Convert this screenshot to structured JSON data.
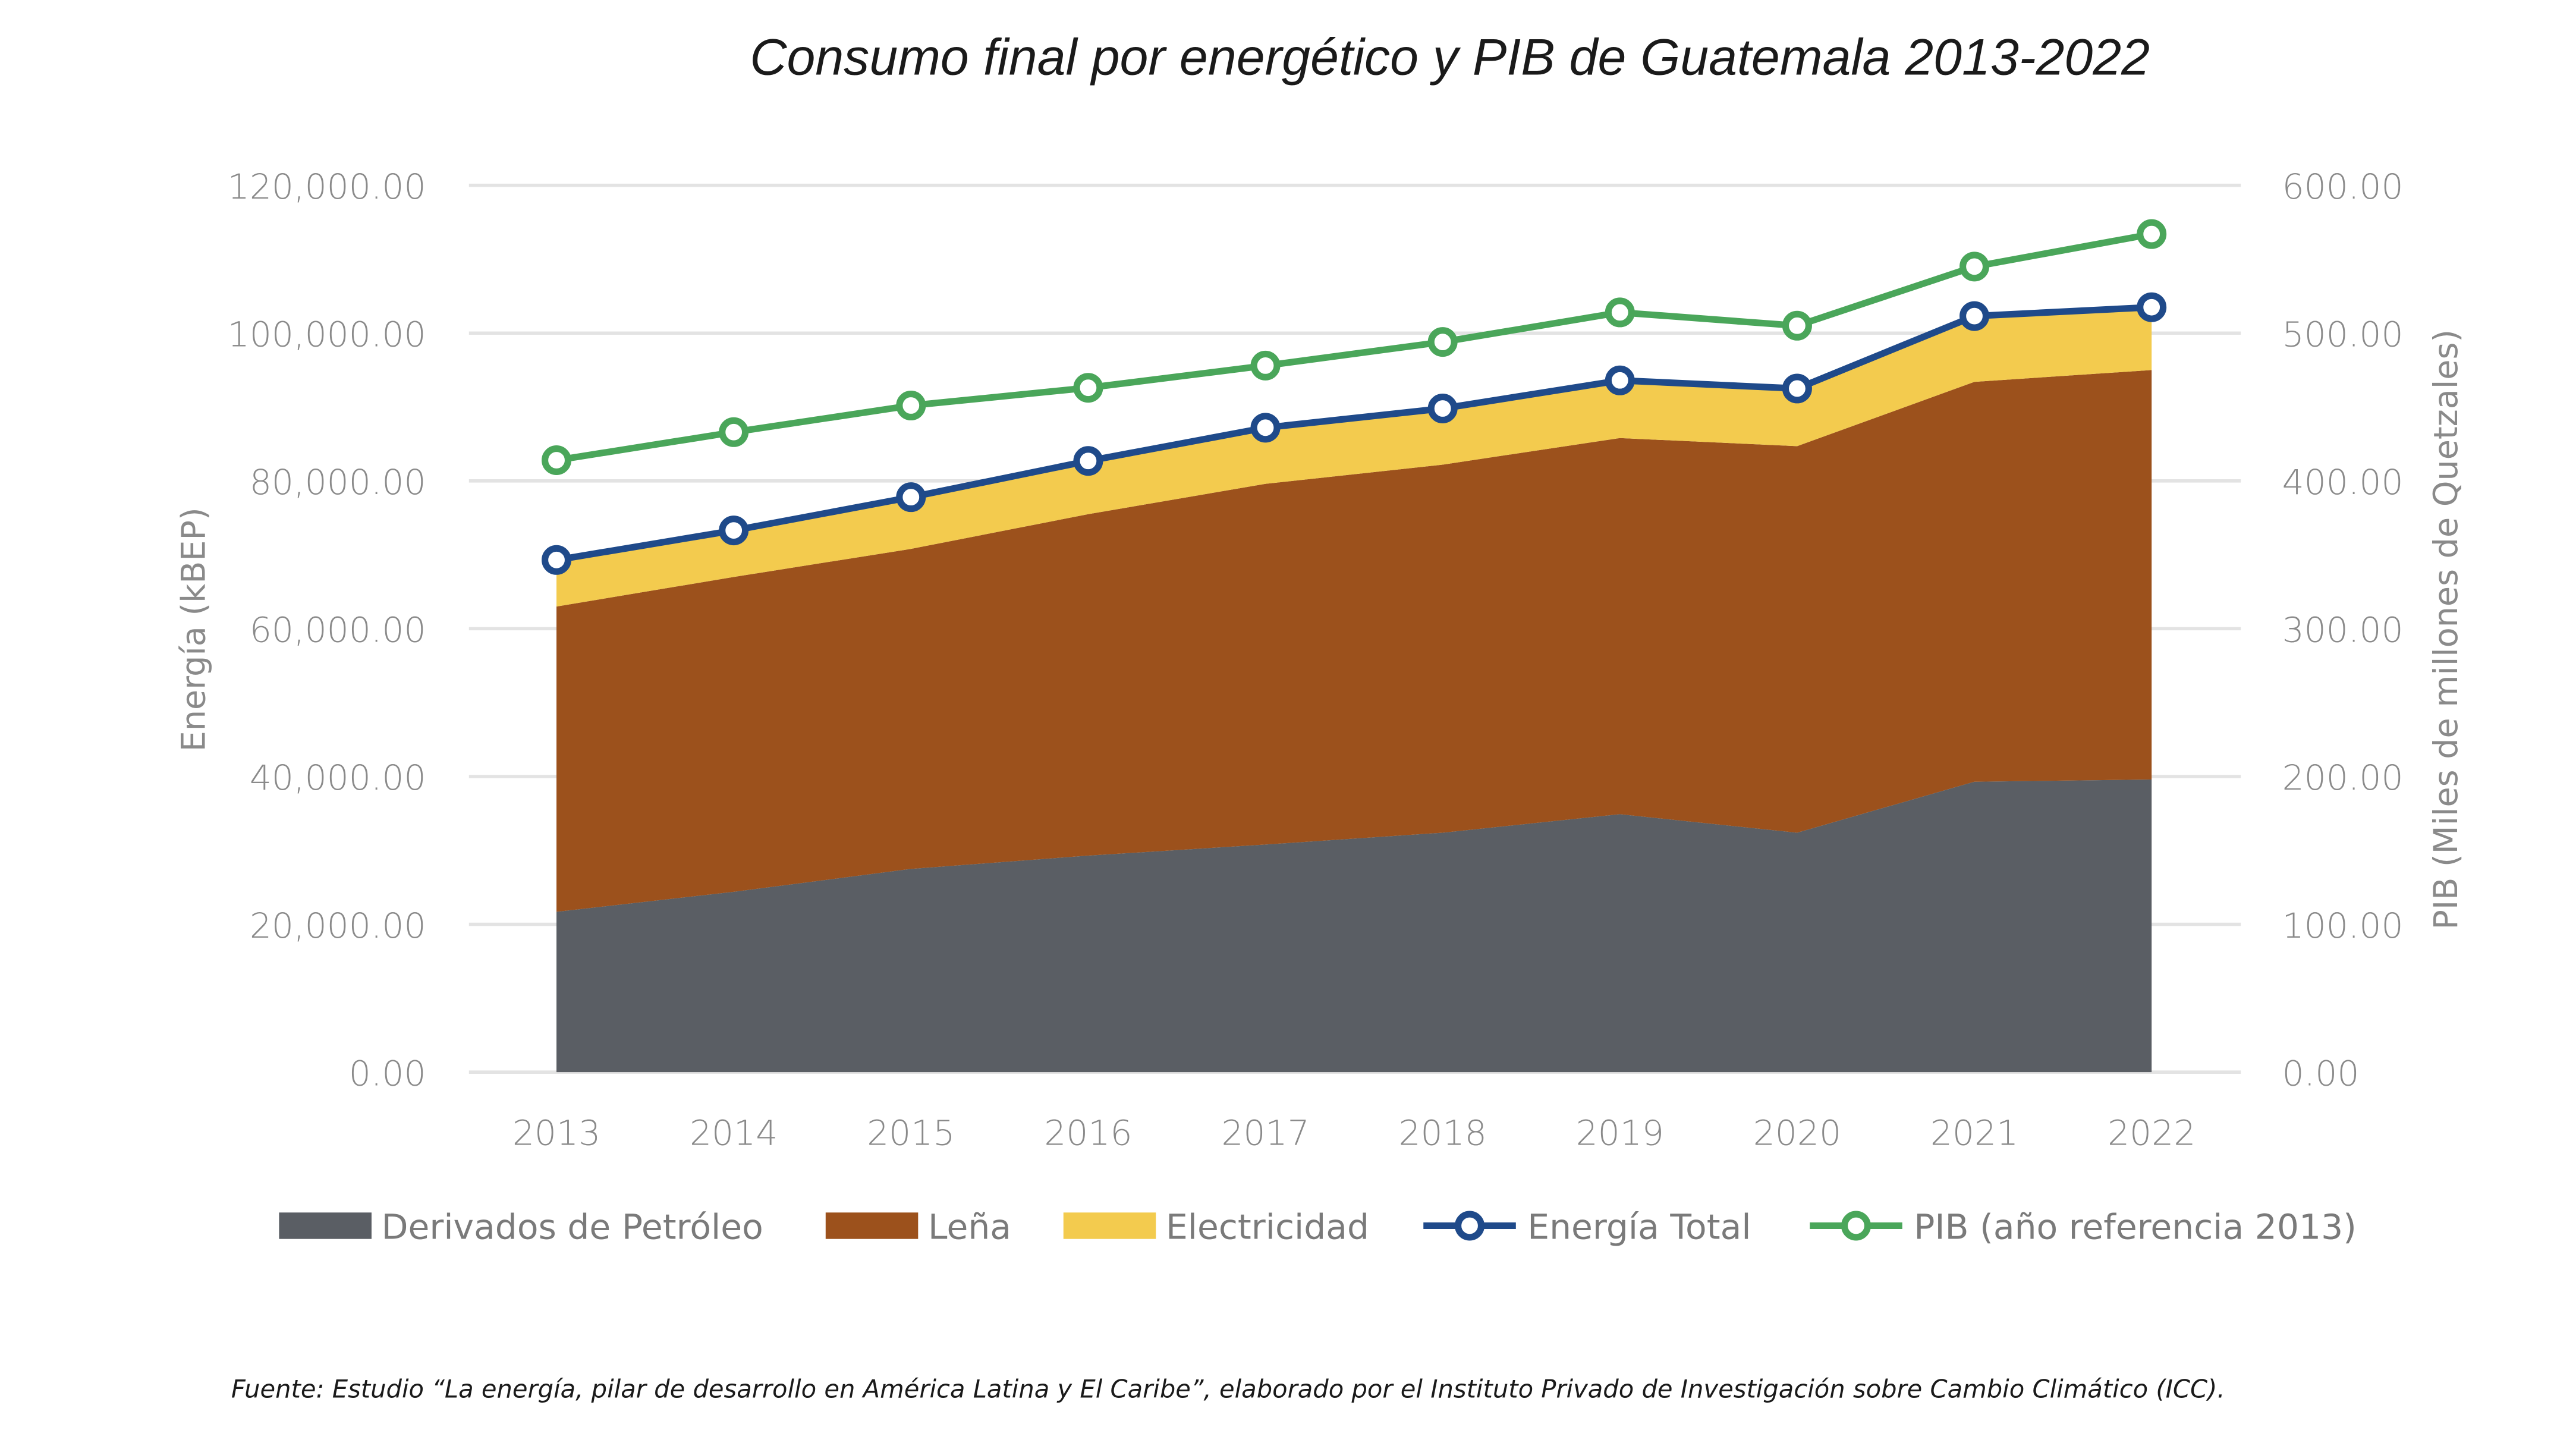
{
  "chart_data": {
    "type": "area",
    "title": "Consumo final por energético y PIB de Guatemala 2013-2022",
    "ylabel": "Energía (kBEP)",
    "y2label": "PIB (Miles de millones de Quetzales)",
    "categories": [
      "2013",
      "2014",
      "2015",
      "2016",
      "2017",
      "2018",
      "2019",
      "2020",
      "2021",
      "2022"
    ],
    "ylim": [
      0,
      120000
    ],
    "y2lim": [
      0,
      600
    ],
    "yticks": [
      "0.00",
      "20,000.00",
      "40,000.00",
      "60,000.00",
      "80,000.00",
      "100,000.00",
      "120,000.00"
    ],
    "y2ticks": [
      "0.00",
      "100.00",
      "200.00",
      "300.00",
      "400.00",
      "500.00",
      "600.00"
    ],
    "grid": true,
    "legend_position": "bottom",
    "stacked_series": [
      {
        "name": "Derivados de Petróleo",
        "color": "#5a5e64",
        "values": [
          21700,
          24400,
          27500,
          29300,
          30800,
          32400,
          34900,
          32400,
          39300,
          39600
        ]
      },
      {
        "name": "Leña",
        "color": "#9c511c",
        "values": [
          41300,
          42600,
          43300,
          46200,
          48800,
          49800,
          50900,
          52300,
          54100,
          55400
        ]
      },
      {
        "name": "Electricidad",
        "color": "#f3cb4e",
        "values": [
          6300,
          6300,
          7000,
          7200,
          7600,
          7600,
          7800,
          7800,
          8900,
          8500
        ]
      }
    ],
    "line_series": [
      {
        "name": "Energía Total",
        "color": "#1f4a8a",
        "axis": "left",
        "values": [
          69300,
          73300,
          77800,
          82700,
          87200,
          89800,
          93600,
          92500,
          102300,
          103500
        ]
      },
      {
        "name": "PIB (año referencia 2013)",
        "color": "#4aa65a",
        "axis": "right",
        "values": [
          414,
          433,
          451,
          463,
          478,
          494,
          514,
          505,
          545,
          567
        ]
      }
    ]
  },
  "source": "Fuente: Estudio “La energía, pilar de desarrollo en América Latina y El Caribe”, elaborado por el Instituto Privado de Investigación sobre Cambio Climático (ICC)."
}
